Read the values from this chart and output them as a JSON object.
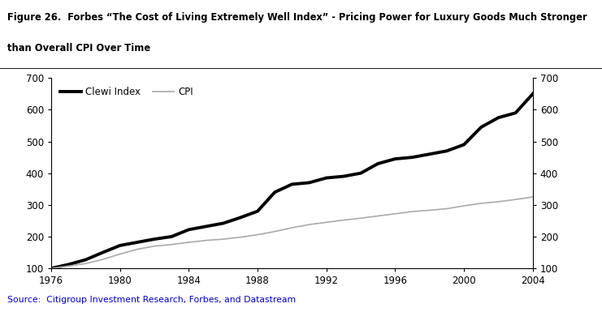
{
  "title_line1": "Figure 26.  Forbes “The Cost of Living Extremely Well Index” - Pricing Power for Luxury Goods Much Stronger",
  "title_line2": "than Overall CPI Over Time",
  "source_text": "Source:  Citigroup Investment Research, Forbes, and Datastream",
  "years": [
    1976,
    1977,
    1978,
    1979,
    1980,
    1981,
    1982,
    1983,
    1984,
    1985,
    1986,
    1987,
    1988,
    1989,
    1990,
    1991,
    1992,
    1993,
    1994,
    1995,
    1996,
    1997,
    1998,
    1999,
    2000,
    2001,
    2002,
    2003,
    2004
  ],
  "clewi": [
    100,
    112,
    127,
    150,
    172,
    182,
    192,
    200,
    222,
    232,
    242,
    260,
    280,
    340,
    365,
    370,
    385,
    390,
    400,
    430,
    445,
    450,
    460,
    470,
    490,
    545,
    575,
    590,
    650
  ],
  "cpi": [
    100,
    107,
    115,
    128,
    145,
    160,
    170,
    175,
    182,
    188,
    192,
    198,
    206,
    216,
    228,
    238,
    245,
    252,
    258,
    265,
    272,
    279,
    283,
    288,
    297,
    305,
    310,
    317,
    325
  ],
  "clewi_color": "#000000",
  "cpi_color": "#aaaaaa",
  "ylim": [
    100,
    700
  ],
  "yticks": [
    100,
    200,
    300,
    400,
    500,
    600,
    700
  ],
  "xticks": [
    1976,
    1980,
    1984,
    1988,
    1992,
    1996,
    2000,
    2004
  ],
  "legend_clewi": "Clewi Index",
  "legend_cpi": "CPI",
  "bg_color": "#ffffff",
  "clewi_linewidth": 2.8,
  "cpi_linewidth": 1.2,
  "source_color": "#0000cc"
}
